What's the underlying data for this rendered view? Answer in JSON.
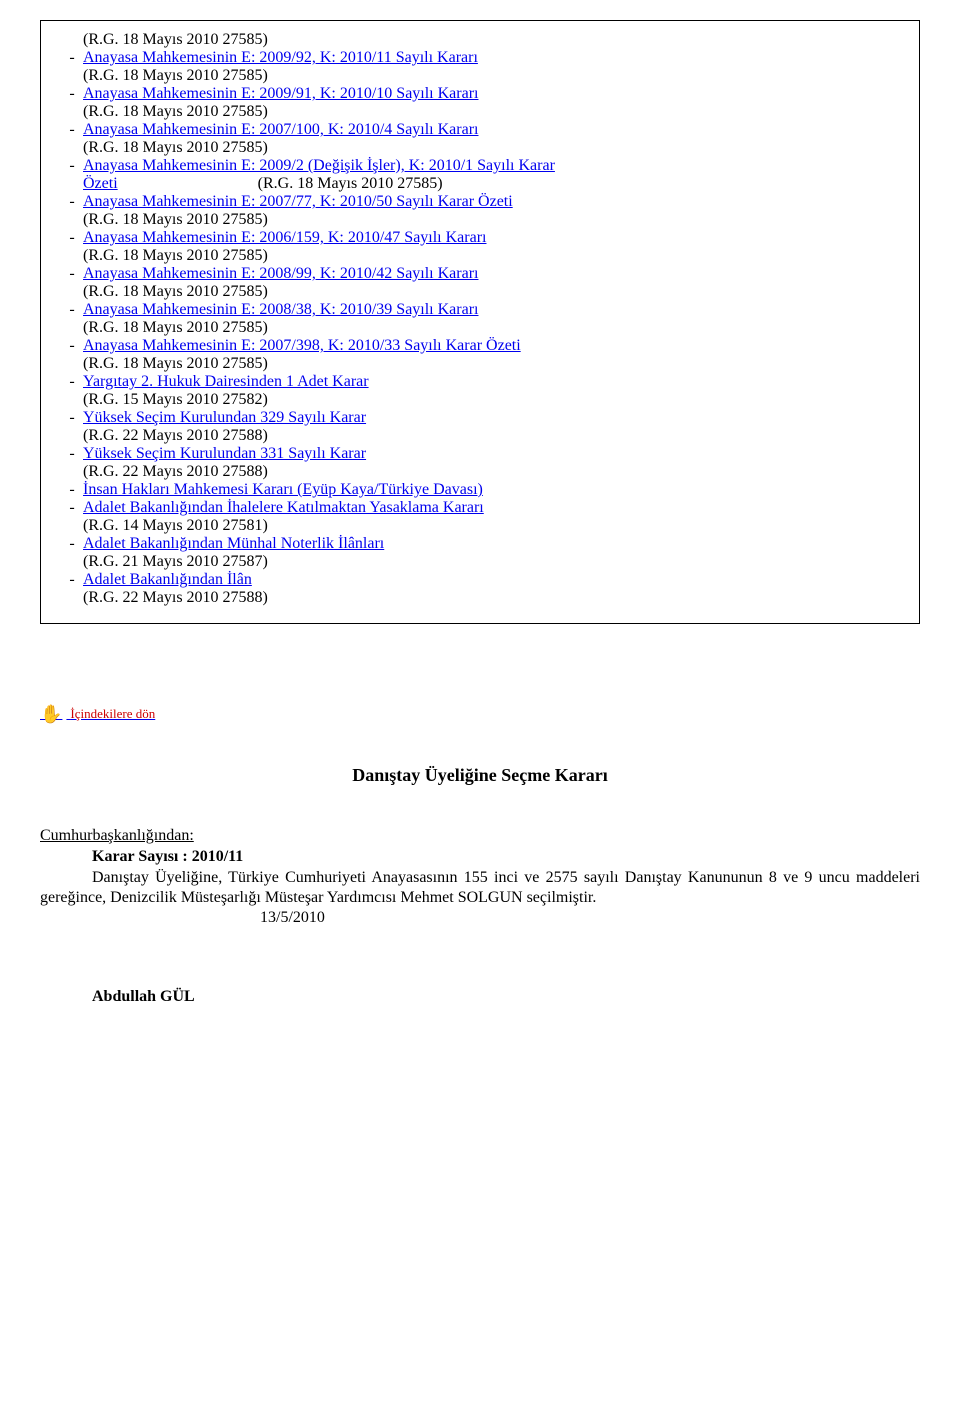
{
  "list": [
    {
      "rg": "(R.G. 18 Mayıs 2010 27585)"
    },
    {
      "dash": "-",
      "link": "Anayasa Mahkemesinin E: 2009/92, K: 2010/11 Sayılı Kararı",
      "rg": "(R.G. 18 Mayıs 2010 27585)"
    },
    {
      "dash": "-",
      "link": "Anayasa Mahkemesinin E: 2009/91, K: 2010/10 Sayılı Kararı",
      "rg": "(R.G. 18 Mayıs 2010 27585)"
    },
    {
      "dash": "-",
      "link": "Anayasa Mahkemesinin E: 2007/100, K: 2010/4 Sayılı Kararı",
      "rg": "(R.G. 18 Mayıs 2010 27585)"
    },
    {
      "dash": "-",
      "link_first": "Anayasa Mahkemesinin E: 2009/2 (Değişik İşler), K: 2010/1 Sayılı Karar",
      "link_ozeti": "Özeti",
      "rg": "(R.G. 18 Mayıs 2010 27585)",
      "twoLineOzeti": true
    },
    {
      "dash": "-",
      "link": "Anayasa Mahkemesinin E: 2007/77, K: 2010/50 Sayılı Karar Özeti",
      "rg": "(R.G. 18 Mayıs 2010 27585)"
    },
    {
      "dash": "-",
      "link": "Anayasa Mahkemesinin E: 2006/159, K: 2010/47 Sayılı Kararı",
      "rg": "(R.G. 18 Mayıs 2010 27585)"
    },
    {
      "dash": "-",
      "link": "Anayasa Mahkemesinin E: 2008/99, K: 2010/42 Sayılı Kararı",
      "rg": "(R.G. 18 Mayıs 2010 27585)"
    },
    {
      "dash": "-",
      "link": "Anayasa Mahkemesinin E: 2008/38, K: 2010/39 Sayılı Kararı",
      "rg": "(R.G. 18 Mayıs 2010 27585)"
    },
    {
      "dash": "-",
      "link": "Anayasa Mahkemesinin E: 2007/398, K: 2010/33 Sayılı Karar Özeti",
      "rg": "(R.G. 18 Mayıs 2010 27585)"
    },
    {
      "dash": "-",
      "link": "Yargıtay 2. Hukuk Dairesinden 1 Adet Karar",
      "rg": "(R.G. 15 Mayıs 2010 27582)"
    },
    {
      "dash": "-",
      "link": "Yüksek Seçim Kurulundan 329 Sayılı Karar",
      "rg": "(R.G. 22 Mayıs 2010 27588)"
    },
    {
      "dash": "-",
      "link": "Yüksek Seçim Kurulundan 331 Sayılı Karar",
      "rg": "(R.G. 22 Mayıs 2010 27588)"
    },
    {
      "dash": "-",
      "link": "İnsan Hakları Mahkemesi Kararı (Eyüp Kaya/Türkiye Davası)"
    },
    {
      "dash": "-",
      "link": "Adalet Bakanlığından İhalelere Katılmaktan Yasaklama Kararı",
      "rg": "(R.G. 14 Mayıs 2010 27581)"
    },
    {
      "dash": "-",
      "link": "Adalet Bakanlığından Münhal Noterlik İlânları",
      "rg": "(R.G. 21 Mayıs 2010 27587)"
    },
    {
      "dash": "-",
      "link": "Adalet Bakanlığından İlân",
      "rg": "(R.G. 22 Mayıs 2010 27588)"
    }
  ],
  "back": {
    "label": "İçindekilere dön"
  },
  "article": {
    "title": "Danıştay Üyeliğine Seçme Kararı",
    "source": "Cumhurbaşkanlığından:",
    "kararLabel": "Karar Sayısı : 2010/11",
    "body": "Danıştay Üyeliğine, Türkiye Cumhuriyeti Anayasasının 155 inci ve 2575 sayılı Danıştay Kanununun 8 ve 9 uncu maddeleri gereğince, Denizcilik Müsteşarlığı Müsteşar Yardımcısı Mehmet SOLGUN seçilmiştir.",
    "date": "13/5/2010",
    "signer": "Abdullah GÜL"
  }
}
